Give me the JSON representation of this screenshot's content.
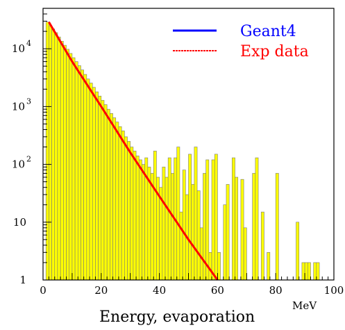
{
  "chart_data": {
    "type": "bar",
    "title": "",
    "xlabel": "Energy, evaporation",
    "x_unit": "MeV",
    "ylabel": "",
    "xlim": [
      0,
      100
    ],
    "ylim": [
      1,
      50000
    ],
    "y_scale": "log",
    "grid": false,
    "legend_position": "top-right",
    "x_ticks": [
      "0",
      "20",
      "40",
      "60",
      "80",
      "100"
    ],
    "y_ticks": [
      {
        "base": "1",
        "exp": ""
      },
      {
        "base": "10",
        "exp": ""
      },
      {
        "base": "10",
        "exp": "2"
      },
      {
        "base": "10",
        "exp": "3"
      },
      {
        "base": "10",
        "exp": "4"
      }
    ],
    "histogram": {
      "name": "Geant4",
      "bin_width": 1,
      "bin_start": 0,
      "values": [
        0,
        29000,
        25000,
        22000,
        19000,
        16000,
        13500,
        11500,
        9800,
        8300,
        7000,
        6000,
        5100,
        4300,
        3600,
        3000,
        2550,
        2150,
        1800,
        1520,
        1280,
        1080,
        900,
        760,
        640,
        540,
        450,
        380,
        300,
        250,
        200,
        170,
        140,
        120,
        100,
        130,
        90,
        70,
        170,
        60,
        40,
        90,
        60,
        130,
        70,
        130,
        200,
        15,
        80,
        30,
        150,
        45,
        200,
        35,
        8,
        70,
        120,
        3,
        120,
        150,
        3,
        1,
        20,
        45,
        1,
        130,
        60,
        1,
        55,
        8,
        1,
        1,
        70,
        130,
        1,
        15,
        1,
        3,
        1,
        1,
        70,
        1,
        1,
        1,
        1,
        1,
        1,
        10,
        1,
        2,
        2,
        2,
        1,
        2,
        2,
        1,
        1,
        1,
        1,
        1
      ],
      "color": "#ffff00"
    },
    "series": [
      {
        "name": "Exp data",
        "type": "line",
        "x": [
          2,
          10,
          20,
          30,
          40,
          50,
          60
        ],
        "y": [
          29000,
          6000,
          1000,
          160,
          28,
          5,
          0.9
        ],
        "color": "#ff0000"
      }
    ],
    "legend": [
      {
        "lead": "Ge",
        "rest": "ant4",
        "line_color": "#0000ff",
        "lead_color": "#0000ff",
        "rest_color": "#0000ff"
      },
      {
        "lead": "E",
        "rest": "xp data",
        "line_color": "#ff0000",
        "lead_color": "#ff0000",
        "rest_color": "#ff0000"
      }
    ]
  }
}
